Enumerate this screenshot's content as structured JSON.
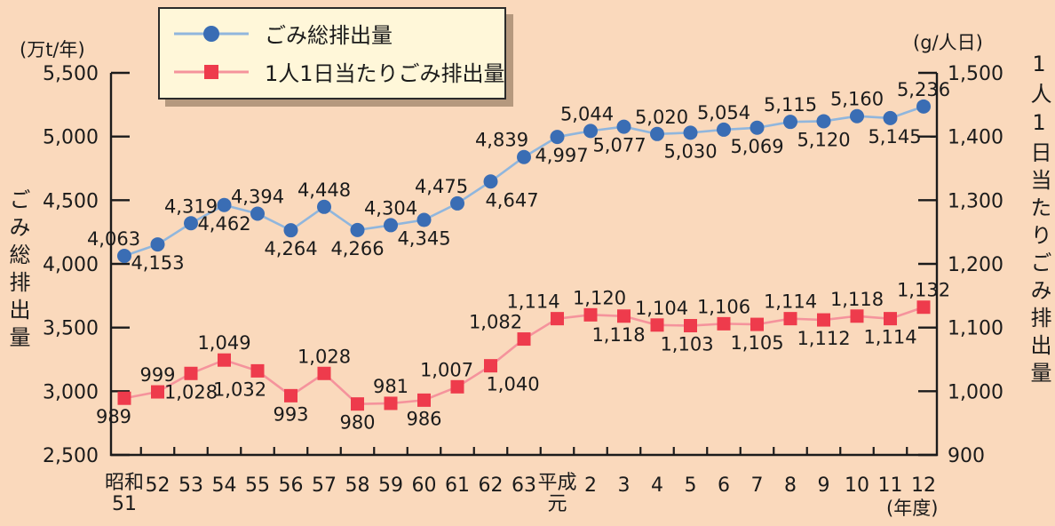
{
  "app": {
    "background": "#fad9bc",
    "text_color": "#1b1b1b",
    "axis_color": "#1b1b1b"
  },
  "legend": {
    "items": [
      {
        "label": "ごみ総排出量",
        "marker": "circle",
        "marker_color": "#3a6db4",
        "line_color": "#90b6dd"
      },
      {
        "label": "1人1日当たりごみ排出量",
        "marker": "square",
        "marker_color": "#ee3b4c",
        "line_color": "#f5939c"
      }
    ]
  },
  "chart_data": {
    "type": "line",
    "x_unit": "(年度)",
    "x_categories": [
      "昭和|51",
      "52",
      "53",
      "54",
      "55",
      "56",
      "57",
      "58",
      "59",
      "60",
      "61",
      "62",
      "63",
      "平成|元",
      "2",
      "3",
      "4",
      "5",
      "6",
      "7",
      "8",
      "9",
      "10",
      "11",
      "12"
    ],
    "left_axis": {
      "unit": "(万t/年)",
      "title": "ごみ総排出量",
      "min": 2500,
      "max": 5500,
      "step": 500,
      "tick_labels": [
        "2,500",
        "3,000",
        "3,500",
        "4,000",
        "4,500",
        "5,000",
        "5,500"
      ]
    },
    "right_axis": {
      "unit": "(g/人日)",
      "title": "1人1日当たりごみ排出量",
      "min": 900,
      "max": 1500,
      "step": 100,
      "tick_labels": [
        "900",
        "1,000",
        "1,100",
        "1,200",
        "1,300",
        "1,400",
        "1,500"
      ]
    },
    "grid": false,
    "legend_position": "top-left",
    "series": [
      {
        "name": "ごみ総排出量",
        "axis": "left",
        "marker": "circle",
        "marker_color": "#3a6db4",
        "line_color": "#90b6dd",
        "values": [
          4063,
          4153,
          4319,
          4462,
          4394,
          4264,
          4448,
          4266,
          4304,
          4345,
          4475,
          4647,
          4839,
          4997,
          5044,
          5077,
          5020,
          5030,
          5054,
          5069,
          5115,
          5120,
          5160,
          5145,
          5236
        ],
        "labels": [
          "4,063",
          "4,153",
          "4,319",
          "4,462",
          "4,394",
          "4,264",
          "4,448",
          "4,266",
          "4,304",
          "4,345",
          "4,475",
          "4,647",
          "4,839",
          "4,997",
          "5,044",
          "5,077",
          "5,020",
          "5,030",
          "5,054",
          "5,069",
          "5,115",
          "5,120",
          "5,160",
          "5,145",
          "5,236"
        ],
        "label_pos": [
          "above",
          "below",
          "above",
          "below",
          "above",
          "below",
          "above",
          "below",
          "above",
          "below",
          "above",
          "below",
          "above",
          "below",
          "above",
          "below",
          "above",
          "below",
          "above",
          "below",
          "above",
          "below",
          "above",
          "below",
          "above"
        ],
        "label_dx": [
          -12,
          0,
          0,
          0,
          0,
          0,
          0,
          0,
          0,
          0,
          -18,
          24,
          -25,
          5,
          -4,
          -5,
          5,
          0,
          0,
          0,
          0,
          0,
          0,
          5,
          0
        ],
        "label_leader": [
          false,
          false,
          false,
          false,
          false,
          false,
          false,
          false,
          false,
          false,
          false,
          false,
          false,
          false,
          false,
          false,
          false,
          false,
          false,
          false,
          false,
          false,
          false,
          true,
          false
        ]
      },
      {
        "name": "1人1日当たりごみ排出量",
        "axis": "right",
        "marker": "square",
        "marker_color": "#ee3b4c",
        "line_color": "#f5939c",
        "values": [
          989,
          999,
          1028,
          1049,
          1032,
          993,
          1028,
          980,
          981,
          986,
          1007,
          1040,
          1082,
          1114,
          1120,
          1118,
          1104,
          1103,
          1106,
          1105,
          1114,
          1112,
          1118,
          1114,
          1132
        ],
        "labels": [
          "989",
          "999",
          "1,028",
          "1,049",
          "1,032",
          "993",
          "1,028",
          "980",
          "981",
          "986",
          "1,007",
          "1,040",
          "1,082",
          "1,114",
          "1,120",
          "1,118",
          "1,104",
          "1,103",
          "1,106",
          "1,105",
          "1,114",
          "1,112",
          "1,118",
          "1,114",
          "1,132"
        ],
        "label_pos": [
          "below",
          "above",
          "below",
          "above",
          "below",
          "below",
          "above",
          "below",
          "above",
          "below",
          "above",
          "below",
          "above",
          "above",
          "above",
          "below",
          "above",
          "below",
          "above",
          "below",
          "above",
          "below",
          "above",
          "below",
          "above"
        ],
        "label_dx": [
          -12,
          0,
          0,
          0,
          -20,
          0,
          0,
          0,
          0,
          0,
          -12,
          25,
          -32,
          -27,
          10,
          -6,
          5,
          -4,
          0,
          0,
          0,
          0,
          0,
          0,
          0
        ],
        "label_leader": [
          false,
          false,
          false,
          false,
          false,
          false,
          false,
          false,
          false,
          false,
          false,
          false,
          false,
          false,
          false,
          false,
          false,
          false,
          false,
          false,
          false,
          false,
          false,
          false,
          false
        ]
      }
    ]
  }
}
